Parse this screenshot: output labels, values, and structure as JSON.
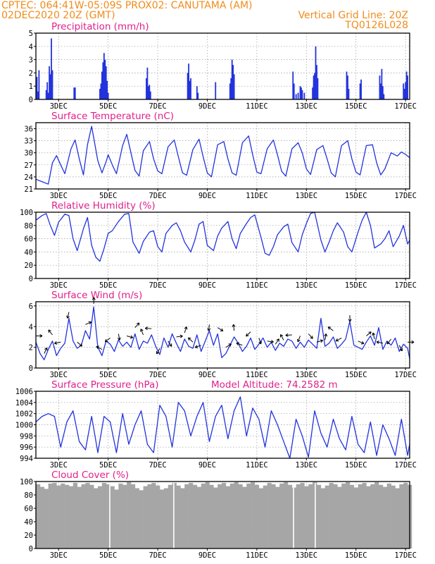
{
  "header": {
    "left1": "CPTEC:   064:41W-05:09S   PROX02: CANUTAMA (AM)",
    "left2": "02DEC2020 20Z (GMT)",
    "right1": "Vertical Grid Line: 20Z",
    "right2": "TQ0126L028"
  },
  "colors": {
    "header": "#f08c1c",
    "title": "#e0208c",
    "series": "#2233dd",
    "cloud": "#a6a6a6"
  },
  "chart_data": [
    {
      "id": "precip",
      "type": "bar",
      "title": "Precipitation (mm/h)",
      "x_ticks": [
        "3DEC",
        "5DEC",
        "7DEC",
        "9DEC",
        "11DEC",
        "13DEC",
        "15DEC",
        "17DEC"
      ],
      "ylim": [
        0,
        5
      ],
      "y_ticks": [
        "0",
        "1",
        "2",
        "3",
        "4",
        "5"
      ],
      "x_range_hours": [
        0,
        362
      ],
      "bars": [
        [
          1,
          1.7
        ],
        [
          2,
          0.6
        ],
        [
          3,
          2.2
        ],
        [
          10,
          0.7
        ],
        [
          11,
          1.3
        ],
        [
          12,
          0.5
        ],
        [
          13,
          2.5
        ],
        [
          14,
          1.9
        ],
        [
          15,
          4.6
        ],
        [
          16,
          2.2
        ],
        [
          37,
          0.9
        ],
        [
          38,
          0.9
        ],
        [
          62,
          0.8
        ],
        [
          63,
          1.2
        ],
        [
          64,
          2.1
        ],
        [
          65,
          2.8
        ],
        [
          66,
          3.5
        ],
        [
          67,
          3.0
        ],
        [
          68,
          2.5
        ],
        [
          69,
          1.4
        ],
        [
          70,
          0.5
        ],
        [
          107,
          1.6
        ],
        [
          108,
          2.4
        ],
        [
          109,
          1.0
        ],
        [
          110,
          1.1
        ],
        [
          111,
          0.6
        ],
        [
          147,
          2.0
        ],
        [
          148,
          2.7
        ],
        [
          149,
          1.4
        ],
        [
          150,
          1.6
        ],
        [
          156,
          1.0
        ],
        [
          157,
          0.5
        ],
        [
          174,
          1.3
        ],
        [
          188,
          1.2
        ],
        [
          189,
          1.6
        ],
        [
          190,
          3.0
        ],
        [
          191,
          2.6
        ],
        [
          192,
          1.9
        ],
        [
          249,
          2.1
        ],
        [
          250,
          1.2
        ],
        [
          252,
          0.4
        ],
        [
          254,
          0.5
        ],
        [
          256,
          1.0
        ],
        [
          257,
          0.9
        ],
        [
          258,
          0.7
        ],
        [
          260,
          0.5
        ],
        [
          268,
          0.9
        ],
        [
          269,
          1.8
        ],
        [
          270,
          2.0
        ],
        [
          271,
          4.0
        ],
        [
          272,
          2.6
        ],
        [
          273,
          1.6
        ],
        [
          301,
          2.1
        ],
        [
          302,
          1.8
        ],
        [
          303,
          0.8
        ],
        [
          314,
          1.2
        ],
        [
          315,
          1.5
        ],
        [
          333,
          1.8
        ],
        [
          334,
          1.2
        ],
        [
          335,
          2.3
        ],
        [
          336,
          1.0
        ],
        [
          337,
          0.4
        ],
        [
          356,
          1.2
        ],
        [
          357,
          0.8
        ],
        [
          358,
          1.3
        ],
        [
          359,
          2.1
        ],
        [
          360,
          1.8
        ]
      ]
    },
    {
      "id": "temp",
      "type": "line",
      "title": "Surface Temperature (nC)",
      "x_ticks": [
        "3DEC",
        "5DEC",
        "7DEC",
        "9DEC",
        "11DEC",
        "13DEC",
        "15DEC",
        "17DEC"
      ],
      "ylim": [
        21,
        37.5
      ],
      "y_ticks": [
        "21",
        "24",
        "27",
        "30",
        "33",
        "36"
      ],
      "x": [
        0,
        8,
        12,
        16,
        20,
        24,
        28,
        34,
        38,
        42,
        46,
        50,
        54,
        60,
        64,
        68,
        70,
        74,
        78,
        84,
        88,
        92,
        96,
        100,
        104,
        110,
        114,
        118,
        122,
        128,
        134,
        138,
        142,
        146,
        152,
        158,
        162,
        166,
        170,
        176,
        182,
        186,
        190,
        194,
        200,
        206,
        210,
        214,
        218,
        224,
        230,
        234,
        238,
        242,
        248,
        254,
        258,
        262,
        266,
        272,
        278,
        282,
        286,
        290,
        296,
        302,
        306,
        310,
        314,
        320,
        326,
        330,
        334,
        338,
        344,
        350,
        354,
        358,
        362
      ],
      "y": [
        23.4,
        22.6,
        22.2,
        27.5,
        29.3,
        27.0,
        24.8,
        31.0,
        33.2,
        28.5,
        24.5,
        32.0,
        36.6,
        28.0,
        25.0,
        27.8,
        29.5,
        27.0,
        24.8,
        31.8,
        34.6,
        30.0,
        25.6,
        24.2,
        30.5,
        32.8,
        28.5,
        25.5,
        24.8,
        31.5,
        33.2,
        29.0,
        25.0,
        24.4,
        30.8,
        33.4,
        29.0,
        25.0,
        24.0,
        32.0,
        32.8,
        28.5,
        25.0,
        24.4,
        32.5,
        34.2,
        29.5,
        25.2,
        24.8,
        31.0,
        33.2,
        29.5,
        25.4,
        24.2,
        31.0,
        32.5,
        30.0,
        26.0,
        24.6,
        30.8,
        31.8,
        28.5,
        25.0,
        24.0,
        31.8,
        33.0,
        28.5,
        25.2,
        24.5,
        31.8,
        32.0,
        27.5,
        24.5,
        26.0,
        30.0,
        29.2,
        30.2,
        29.6,
        28.8
      ]
    },
    {
      "id": "rh",
      "type": "line",
      "title": "Relative Humidity (%)",
      "x_ticks": [
        "3DEC",
        "5DEC",
        "7DEC",
        "9DEC",
        "11DEC",
        "13DEC",
        "15DEC",
        "17DEC"
      ],
      "ylim": [
        0,
        100
      ],
      "y_ticks": [
        "0",
        "20",
        "40",
        "60",
        "80",
        "100"
      ],
      "x": [
        0,
        6,
        10,
        14,
        18,
        22,
        28,
        32,
        36,
        40,
        46,
        50,
        54,
        58,
        62,
        66,
        70,
        74,
        80,
        86,
        90,
        94,
        100,
        104,
        110,
        114,
        118,
        122,
        126,
        132,
        136,
        140,
        144,
        150,
        154,
        158,
        162,
        166,
        172,
        176,
        180,
        186,
        190,
        194,
        198,
        204,
        208,
        212,
        218,
        222,
        226,
        230,
        234,
        240,
        244,
        248,
        254,
        258,
        262,
        266,
        270,
        276,
        280,
        284,
        288,
        292,
        298,
        302,
        306,
        312,
        316,
        320,
        324,
        328,
        334,
        338,
        342,
        346,
        352,
        356,
        360,
        362
      ],
      "y": [
        88,
        95,
        98,
        80,
        65,
        85,
        97,
        95,
        60,
        42,
        75,
        92,
        50,
        32,
        26,
        45,
        68,
        72,
        86,
        97,
        98,
        55,
        38,
        56,
        70,
        72,
        48,
        40,
        68,
        80,
        84,
        72,
        55,
        40,
        58,
        82,
        86,
        50,
        42,
        64,
        76,
        86,
        60,
        45,
        68,
        83,
        92,
        96,
        62,
        38,
        35,
        48,
        66,
        78,
        82,
        54,
        40,
        66,
        83,
        98,
        100,
        58,
        40,
        55,
        72,
        84,
        70,
        48,
        40,
        70,
        88,
        100,
        80,
        46,
        52,
        60,
        72,
        48,
        64,
        80,
        52,
        58
      ]
    },
    {
      "id": "wind",
      "type": "line",
      "title": "Surface Wind (m/s)",
      "x_ticks": [
        "3DEC",
        "5DEC",
        "7DEC",
        "9DEC",
        "11DEC",
        "13DEC",
        "15DEC",
        "17DEC"
      ],
      "ylim": [
        0,
        6.4
      ],
      "y_ticks": [
        "0",
        "2",
        "4",
        "6"
      ],
      "x": [
        0,
        4,
        8,
        12,
        16,
        20,
        24,
        28,
        32,
        36,
        40,
        44,
        48,
        52,
        56,
        60,
        64,
        68,
        72,
        76,
        80,
        84,
        88,
        92,
        96,
        100,
        104,
        108,
        112,
        116,
        120,
        124,
        128,
        132,
        136,
        140,
        144,
        148,
        152,
        156,
        160,
        164,
        168,
        172,
        176,
        180,
        184,
        188,
        192,
        196,
        200,
        204,
        208,
        212,
        216,
        220,
        224,
        228,
        232,
        236,
        240,
        244,
        248,
        252,
        256,
        260,
        264,
        268,
        272,
        276,
        280,
        284,
        288,
        292,
        296,
        300,
        304,
        308,
        312,
        316,
        320,
        324,
        328,
        332,
        336,
        340,
        344,
        348,
        352,
        356,
        360,
        362
      ],
      "y": [
        2.5,
        1.4,
        0.8,
        1.8,
        2.6,
        1.2,
        1.9,
        2.4,
        4.8,
        2.6,
        1.9,
        2.2,
        3.6,
        2.8,
        5.9,
        2.0,
        1.2,
        2.6,
        2.3,
        1.6,
        2.7,
        2.1,
        2.5,
        2.0,
        3.3,
        1.8,
        2.6,
        2.4,
        3.2,
        2.1,
        1.3,
        2.9,
        2.0,
        3.3,
        2.4,
        1.6,
        2.8,
        2.1,
        1.9,
        3.2,
        1.6,
        2.6,
        3.6,
        2.2,
        3.3,
        1.0,
        1.4,
        2.2,
        3.0,
        2.4,
        1.6,
        2.1,
        2.9,
        1.8,
        2.3,
        2.9,
        2.0,
        2.5,
        1.7,
        2.4,
        2.1,
        2.8,
        2.6,
        1.9,
        2.5,
        2.0,
        2.7,
        2.3,
        1.9,
        4.8,
        2.1,
        2.4,
        3.0,
        1.9,
        2.3,
        2.8,
        4.5,
        2.2,
        2.0,
        1.8,
        2.5,
        3.1,
        2.2,
        3.9,
        1.8,
        2.6,
        2.2,
        2.9,
        1.6,
        2.3,
        1.9,
        0.9
      ]
    },
    {
      "id": "pres",
      "type": "line",
      "title": "Surface Pressure (hPa)",
      "note": "Model Altitude: 74.2582 m",
      "x_ticks": [
        "3DEC",
        "5DEC",
        "7DEC",
        "9DEC",
        "11DEC",
        "13DEC",
        "15DEC",
        "17DEC"
      ],
      "ylim": [
        994,
        1006
      ],
      "y_ticks": [
        "994",
        "996",
        "998",
        "1000",
        "1002",
        "1004",
        "1006"
      ],
      "x": [
        0,
        6,
        12,
        18,
        24,
        30,
        36,
        42,
        48,
        54,
        60,
        66,
        72,
        78,
        84,
        90,
        96,
        102,
        108,
        114,
        120,
        126,
        132,
        138,
        144,
        150,
        156,
        162,
        168,
        174,
        180,
        186,
        192,
        198,
        204,
        210,
        216,
        222,
        228,
        234,
        240,
        246,
        252,
        258,
        264,
        270,
        276,
        282,
        288,
        294,
        300,
        306,
        312,
        318,
        324,
        330,
        336,
        342,
        348,
        354,
        360,
        362
      ],
      "y": [
        1000.5,
        1001.5,
        1002.0,
        1001.5,
        996.0,
        1000.5,
        1002.5,
        997.0,
        995.5,
        1001.5,
        995.0,
        1001.5,
        1000.5,
        995.0,
        1002.0,
        996.5,
        1000.0,
        1002.5,
        996.5,
        995.0,
        1003.5,
        1001.5,
        996.0,
        1004.0,
        1002.5,
        998.0,
        1001.5,
        1004.0,
        997.0,
        1001.5,
        1003.5,
        997.5,
        1002.5,
        1005.0,
        998.0,
        1003.0,
        1001.0,
        996.0,
        1002.5,
        1000.0,
        997.0,
        994.0,
        1001.0,
        998.0,
        994.2,
        1002.5,
        998.5,
        996.0,
        1001.0,
        997.5,
        995.5,
        1001.5,
        996.5,
        995.0,
        1000.5,
        994.5,
        1000.0,
        997.5,
        994.5,
        1001.0,
        994.5,
        996.5
      ]
    },
    {
      "id": "cloud",
      "type": "bar",
      "title": "Cloud Cover (%)",
      "x_ticks": [
        "3DEC",
        "5DEC",
        "7DEC",
        "9DEC",
        "11DEC",
        "13DEC",
        "15DEC",
        "17DEC"
      ],
      "ylim": [
        0,
        100
      ],
      "y_ticks": [
        "0",
        "20",
        "40",
        "60",
        "80",
        "100"
      ],
      "segments": [
        [
          0,
          96
        ],
        [
          4,
          92
        ],
        [
          8,
          89
        ],
        [
          12,
          97
        ],
        [
          16,
          98
        ],
        [
          20,
          94
        ],
        [
          24,
          97
        ],
        [
          28,
          95
        ],
        [
          32,
          93
        ],
        [
          36,
          98
        ],
        [
          40,
          92
        ],
        [
          44,
          96
        ],
        [
          48,
          98
        ],
        [
          52,
          95
        ],
        [
          56,
          90
        ],
        [
          60,
          93
        ],
        [
          64,
          98
        ],
        [
          68,
          96
        ],
        [
          72,
          93
        ],
        [
          76,
          88
        ],
        [
          80,
          97
        ],
        [
          84,
          95
        ],
        [
          88,
          99
        ],
        [
          92,
          96
        ],
        [
          96,
          90
        ],
        [
          100,
          87
        ],
        [
          104,
          93
        ],
        [
          108,
          96
        ],
        [
          112,
          98
        ],
        [
          116,
          94
        ],
        [
          120,
          88
        ],
        [
          124,
          90
        ],
        [
          128,
          95
        ],
        [
          132,
          98
        ],
        [
          136,
          94
        ],
        [
          140,
          90
        ],
        [
          144,
          96
        ],
        [
          148,
          98
        ],
        [
          152,
          95
        ],
        [
          156,
          92
        ],
        [
          160,
          97
        ],
        [
          164,
          99
        ],
        [
          168,
          95
        ],
        [
          172,
          91
        ],
        [
          176,
          96
        ],
        [
          180,
          98
        ],
        [
          184,
          93
        ],
        [
          188,
          97
        ],
        [
          192,
          99
        ],
        [
          196,
          96
        ],
        [
          200,
          92
        ],
        [
          204,
          97
        ],
        [
          208,
          99
        ],
        [
          212,
          95
        ],
        [
          216,
          90
        ],
        [
          220,
          94
        ],
        [
          224,
          98
        ],
        [
          228,
          96
        ],
        [
          232,
          92
        ],
        [
          236,
          97
        ],
        [
          240,
          99
        ],
        [
          244,
          95
        ],
        [
          248,
          91
        ],
        [
          252,
          96
        ],
        [
          256,
          98
        ],
        [
          260,
          93
        ],
        [
          264,
          96
        ],
        [
          268,
          99
        ],
        [
          272,
          95
        ],
        [
          276,
          90
        ],
        [
          280,
          94
        ],
        [
          284,
          98
        ],
        [
          288,
          96
        ],
        [
          292,
          92
        ],
        [
          296,
          97
        ],
        [
          300,
          99
        ],
        [
          304,
          95
        ],
        [
          308,
          91
        ],
        [
          312,
          96
        ],
        [
          316,
          98
        ],
        [
          320,
          93
        ],
        [
          324,
          96
        ],
        [
          328,
          99
        ],
        [
          332,
          95
        ],
        [
          336,
          92
        ],
        [
          340,
          97
        ],
        [
          344,
          94
        ],
        [
          348,
          90
        ],
        [
          352,
          96
        ],
        [
          356,
          98
        ],
        [
          360,
          95
        ]
      ],
      "dips": [
        [
          71,
          20
        ],
        [
          133,
          15
        ],
        [
          249,
          22
        ],
        [
          270,
          18
        ]
      ]
    }
  ]
}
